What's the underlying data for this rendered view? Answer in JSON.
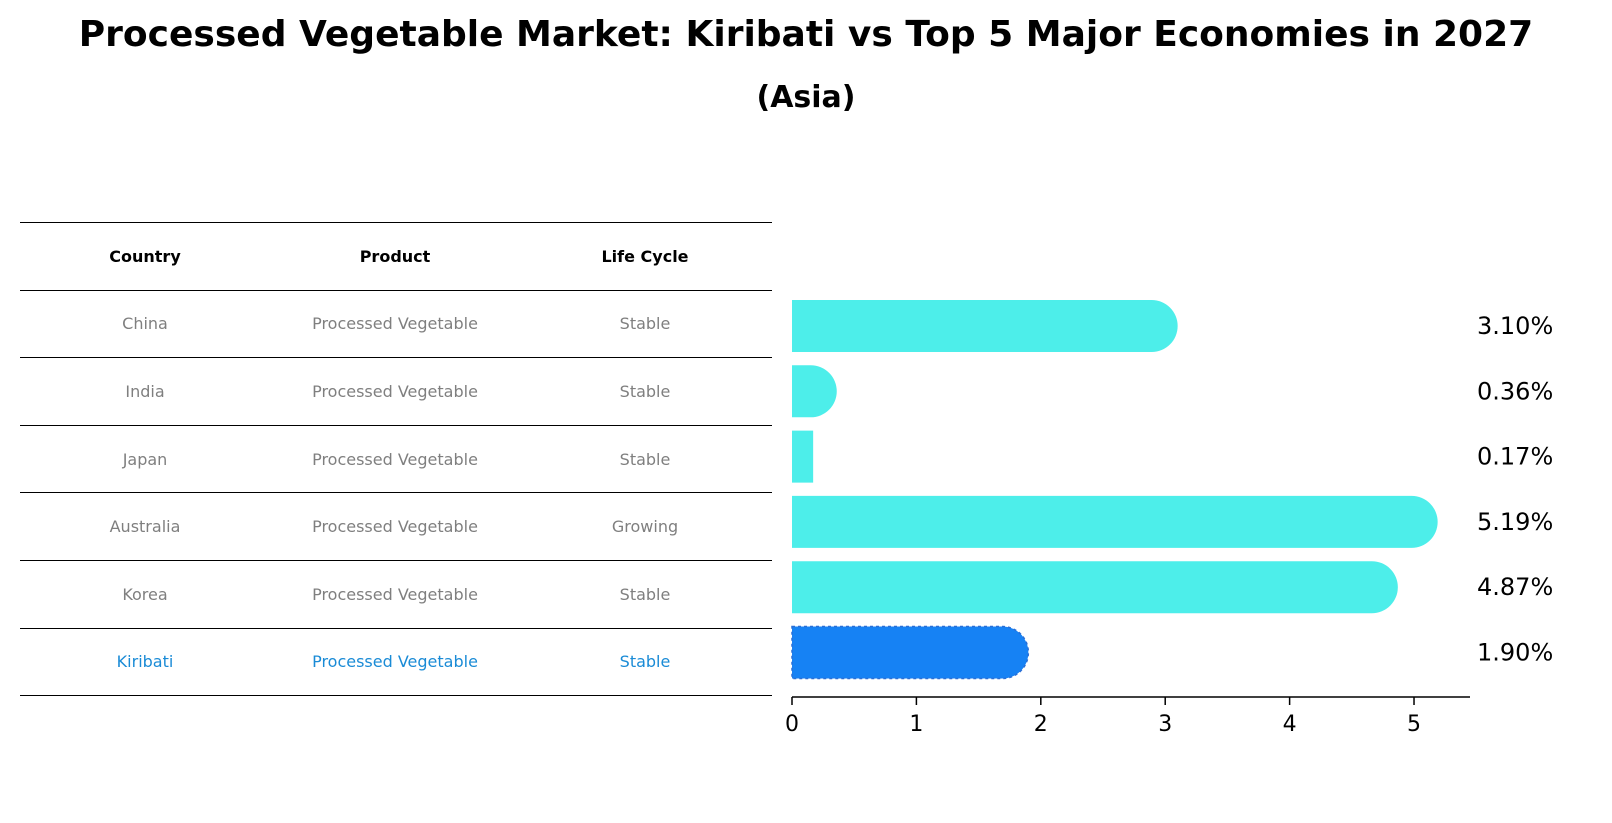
{
  "header": {
    "title": "Processed Vegetable Market: Kiribati vs Top 5 Major Economies in 2027",
    "subtitle": "(Asia)"
  },
  "table": {
    "columns": [
      "Country",
      "Product",
      "Life Cycle"
    ],
    "rows": [
      {
        "country": "China",
        "product": "Processed Vegetable",
        "life_cycle": "Stable"
      },
      {
        "country": "India",
        "product": "Processed Vegetable",
        "life_cycle": "Stable"
      },
      {
        "country": "Japan",
        "product": "Processed Vegetable",
        "life_cycle": "Stable"
      },
      {
        "country": "Australia",
        "product": "Processed Vegetable",
        "life_cycle": "Growing"
      },
      {
        "country": "Korea",
        "product": "Processed Vegetable",
        "life_cycle": "Stable"
      },
      {
        "country": "Kiribati",
        "product": "Processed Vegetable",
        "life_cycle": "Stable"
      }
    ],
    "highlight_row": "Kiribati",
    "highlight_text_color": "#1a8bd6",
    "normal_text_color": "#7f7f7f"
  },
  "chart_data": {
    "type": "bar",
    "orientation": "horizontal",
    "categories": [
      "China",
      "India",
      "Japan",
      "Australia",
      "Korea",
      "Kiribati"
    ],
    "values": [
      3.1,
      0.36,
      0.17,
      5.19,
      4.87,
      1.9
    ],
    "value_labels": [
      "3.10%",
      "0.36%",
      "0.17%",
      "5.19%",
      "4.87%",
      "1.90%"
    ],
    "xlim": [
      0,
      5.45
    ],
    "xticks": [
      0,
      1,
      2,
      3,
      4,
      5
    ],
    "grid": false,
    "colors": {
      "default": "#4deeea",
      "highlight": "#1682f4"
    },
    "highlight_category": "Kiribati"
  }
}
